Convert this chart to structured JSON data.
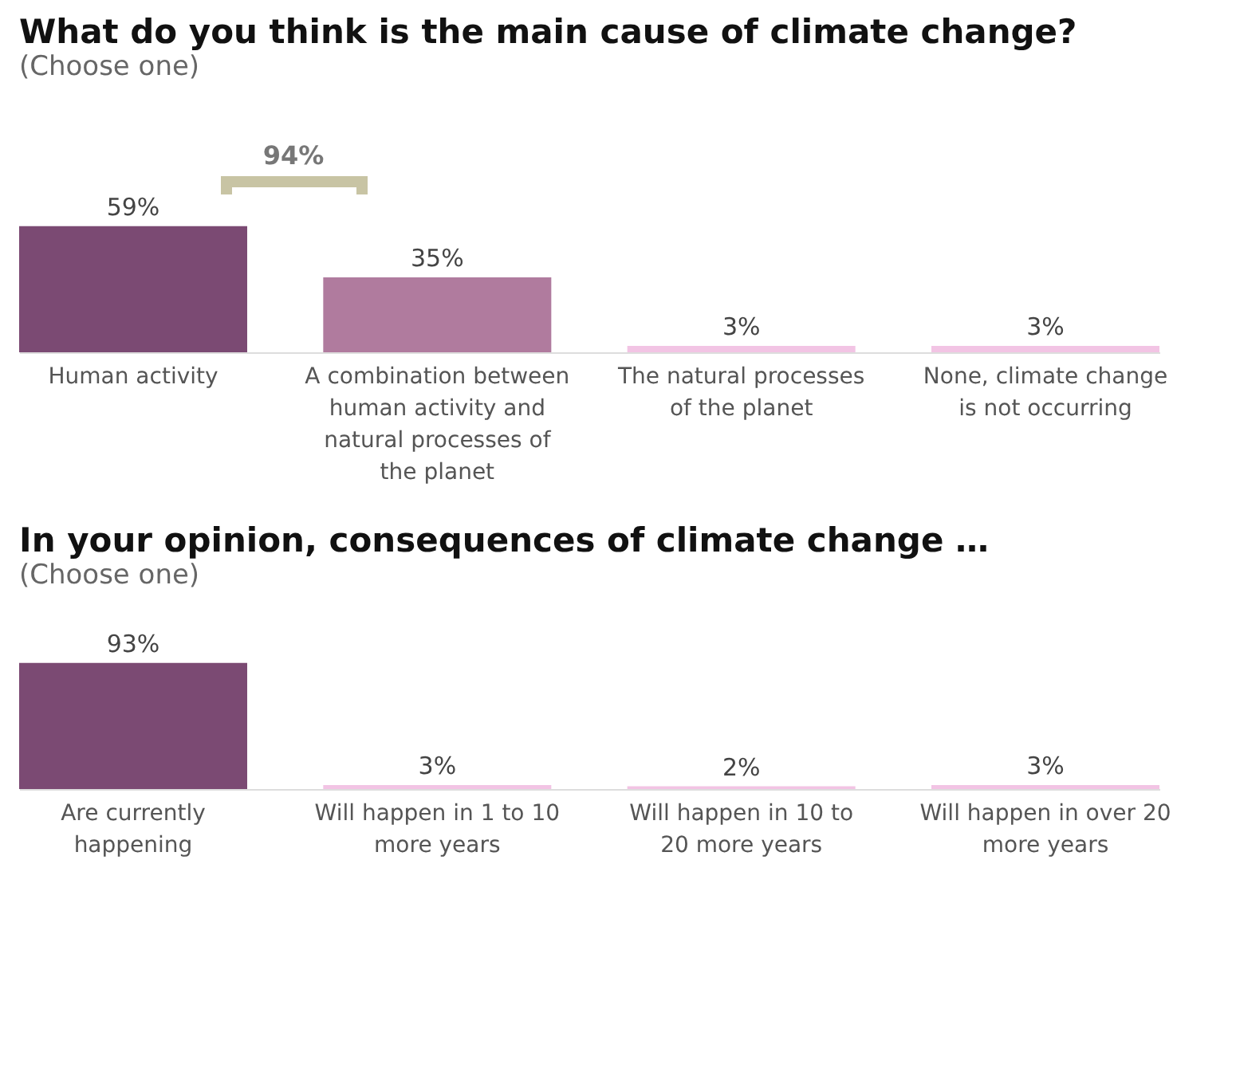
{
  "chart_data": [
    {
      "type": "bar",
      "title": "What do you think is the main cause of climate change?",
      "subtitle": "(Choose one)",
      "categories": [
        "Human activity",
        "A combination between human activity and natural processes of the planet",
        "The natural processes of the planet",
        "None, climate change is not occurring"
      ],
      "values": [
        59,
        35,
        3,
        3
      ],
      "value_labels": [
        "59%",
        "35%",
        "3%",
        "3%"
      ],
      "colors": [
        "#7b4a73",
        "#b07b9e",
        "#f2c4e4",
        "#f2c4e4"
      ],
      "annotations": [
        "94%"
      ],
      "grid": false
    },
    {
      "type": "bar",
      "title": "In your opinion, consequences of climate change …",
      "subtitle": "(Choose one)",
      "categories": [
        "Are currently happening",
        "Will happen in 1 to 10 more years",
        "Will happen in 10 to 20 more years",
        "Will happen in over 20 more years"
      ],
      "values": [
        93,
        3,
        2,
        3
      ],
      "value_labels": [
        "93%",
        "3%",
        "2%",
        "3%"
      ],
      "colors": [
        "#7b4a73",
        "#f2c4e4",
        "#f2c4e4",
        "#f2c4e4"
      ],
      "grid": false
    }
  ]
}
